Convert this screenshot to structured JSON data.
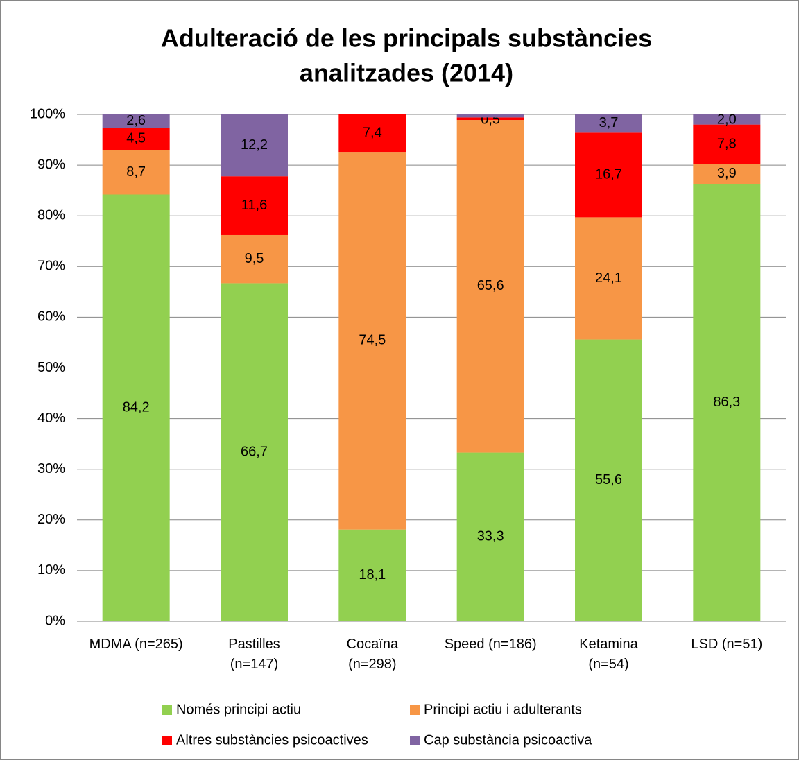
{
  "chart_data": {
    "type": "stacked_bar",
    "title": [
      "Adulteració de les principals substàncies",
      "analitzades (2014)"
    ],
    "categories": [
      [
        "MDMA (n=265)"
      ],
      [
        "Pastilles",
        "(n=147)"
      ],
      [
        "Cocaïna",
        "(n=298)"
      ],
      [
        "Speed (n=186)"
      ],
      [
        "Ketamina",
        "(n=54)"
      ],
      [
        "LSD (n=51)"
      ]
    ],
    "series": [
      {
        "name": "Només principi actiu",
        "color": "#92d050",
        "values": [
          84.2,
          66.7,
          18.1,
          33.3,
          55.6,
          86.3
        ],
        "value_labels": [
          "84,2",
          "66,7",
          "18,1",
          "33,3",
          "55,6",
          "86,3"
        ]
      },
      {
        "name": "Principi actiu i adulterants",
        "color": "#f79646",
        "values": [
          8.7,
          9.5,
          74.5,
          65.6,
          24.1,
          3.9
        ],
        "value_labels": [
          "8,7",
          "9,5",
          "74,5",
          "65,6",
          "24,1",
          "3,9"
        ]
      },
      {
        "name": "Altres substàncies psicoactives",
        "color": "#ff0000",
        "values": [
          4.5,
          11.6,
          7.4,
          0.5,
          16.7,
          7.8
        ],
        "value_labels": [
          "4,5",
          "11,6",
          "7,4",
          "0,5",
          "16,7",
          "7,8"
        ]
      },
      {
        "name": "Cap substància psicoactiva",
        "color": "#8064a2",
        "values": [
          2.6,
          12.2,
          0,
          0.6,
          3.7,
          2.0
        ],
        "value_labels": [
          "2,6",
          "12,2",
          null,
          null,
          "3,7",
          "2,0"
        ]
      }
    ],
    "ylim": [
      0,
      100
    ],
    "yticks": [
      {
        "value": 0,
        "label": "0%"
      },
      {
        "value": 10,
        "label": "10%"
      },
      {
        "value": 20,
        "label": "20%"
      },
      {
        "value": 30,
        "label": "30%"
      },
      {
        "value": 40,
        "label": "40%"
      },
      {
        "value": 50,
        "label": "50%"
      },
      {
        "value": 60,
        "label": "60%"
      },
      {
        "value": 70,
        "label": "70%"
      },
      {
        "value": 80,
        "label": "80%"
      },
      {
        "value": 90,
        "label": "90%"
      },
      {
        "value": 100,
        "label": "100%"
      }
    ],
    "grid": true
  }
}
